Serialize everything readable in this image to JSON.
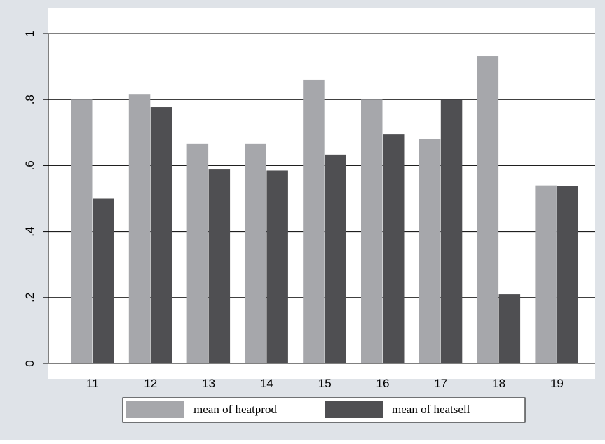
{
  "chart_data": {
    "type": "bar",
    "categories": [
      "11",
      "12",
      "13",
      "14",
      "15",
      "16",
      "17",
      "18",
      "19"
    ],
    "series": [
      {
        "name": "mean of heatprod",
        "values": [
          0.8,
          0.817,
          0.667,
          0.667,
          0.86,
          0.8,
          0.68,
          0.932,
          0.54
        ]
      },
      {
        "name": "mean of heatsell",
        "values": [
          0.5,
          0.777,
          0.588,
          0.585,
          0.633,
          0.694,
          0.8,
          0.21,
          0.538
        ]
      }
    ],
    "yticks": [
      0,
      0.2,
      0.4,
      0.6,
      0.8,
      1
    ],
    "ytick_labels": [
      "0",
      ".2",
      ".4",
      ".6",
      ".8",
      "1"
    ],
    "ylim": [
      0,
      1
    ],
    "grid": true,
    "legend_position": "bottom",
    "colors": {
      "outer_background": "#dfe3e8",
      "plot_background": "#ffffff",
      "series_1": "#a6a7ab",
      "series_2": "#4f4f52",
      "gridline": "#000000"
    }
  }
}
